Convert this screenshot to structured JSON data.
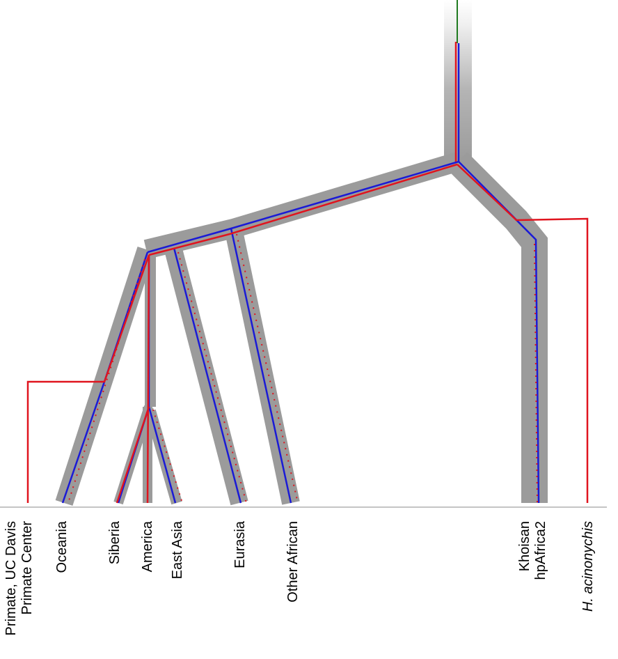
{
  "colors": {
    "population_band": "#9b9b9b",
    "population_band_fade": "#ffffff",
    "human_gene_tree": "#e0141e",
    "bacteria_gene_tree": "#1a1ad6",
    "root_lineage": "#1f7a1f",
    "baseline": "#888888"
  },
  "labels": {
    "primate": {
      "line1": "Primate, UC Davis",
      "line2": "Primate Center"
    },
    "oceania": "Oceania",
    "siberia": "Siberia",
    "america": "America",
    "east_asia": "East Asia",
    "eurasia": "Eurasia",
    "other_african": "Other African",
    "khoisan": {
      "line1": "Khoisan",
      "line2": "hpAfrica2"
    },
    "acinonychis": "H. acinonychis"
  }
}
